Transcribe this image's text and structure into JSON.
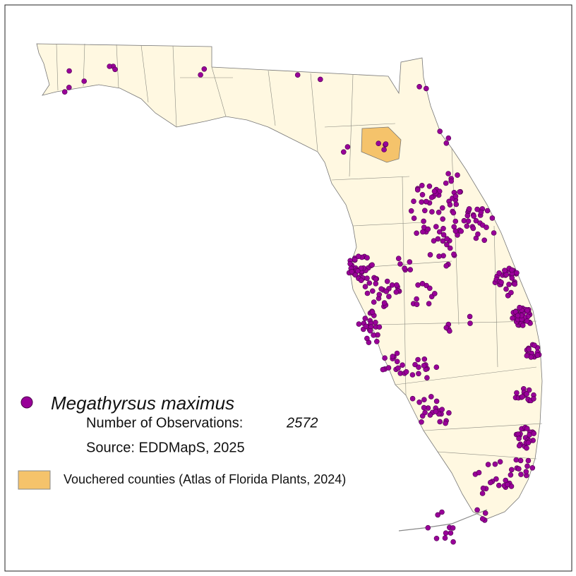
{
  "legend": {
    "species": "Megathyrsus maximus",
    "observations_label": "Number of Observations:",
    "observations_count": 2572,
    "source": "Source: EDDMapS, 2025",
    "vouchered_label": "Vouchered counties (Atlas of Florida Plants, 2024)"
  }
}
